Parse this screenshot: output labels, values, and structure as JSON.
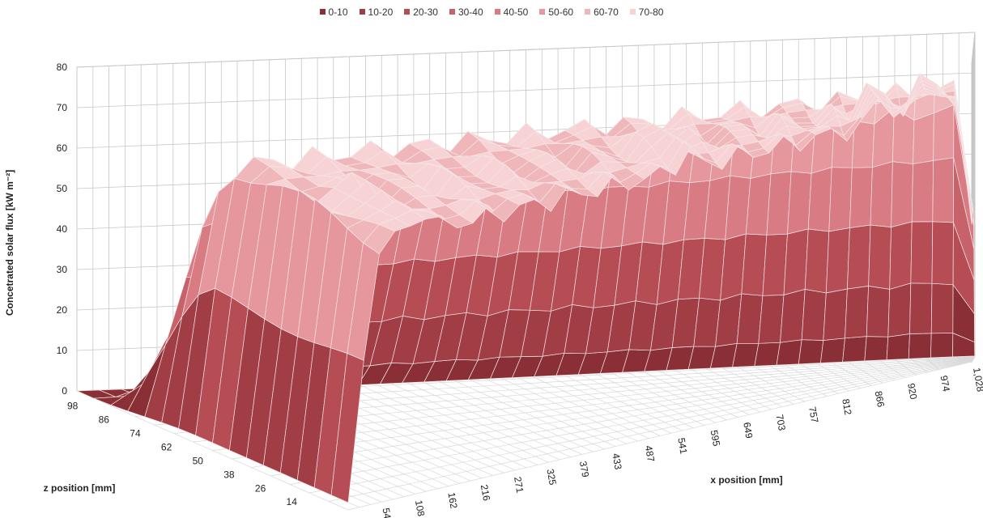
{
  "chart_data": {
    "type": "surface",
    "ylabel": "Concetrated solar flux [kW m⁻²]",
    "xlabel": "x position [mm]",
    "zlabel": "z position [mm]",
    "ylim": [
      0,
      80
    ],
    "y_ticks": [
      "0",
      "10",
      "20",
      "30",
      "40",
      "50",
      "60",
      "70",
      "80"
    ],
    "x_ticks": [
      "54",
      "108",
      "162",
      "216",
      "271",
      "325",
      "379",
      "433",
      "487",
      "541",
      "595",
      "649",
      "703",
      "757",
      "812",
      "866",
      "920",
      "974",
      "1,028"
    ],
    "z_ticks": [
      "98",
      "86",
      "74",
      "62",
      "50",
      "38",
      "26",
      "14"
    ],
    "x_range_mm": [
      0,
      1028
    ],
    "z_range_mm": [
      0,
      104
    ],
    "surface_profile": {
      "description": "flux rises sharply near both x ends and forms a plateau of about 70-75 kW m-2; along z the flux is low near z 98-104 and peaks near z 14-50",
      "plateau_value": 73,
      "x_edges_mm": [
        54,
        1000
      ],
      "peak_spikes": [
        {
          "x": 120,
          "y": 76
        },
        {
          "x": 560,
          "y": 77
        },
        {
          "x": 880,
          "y": 79
        },
        {
          "x": 960,
          "y": 80
        }
      ]
    },
    "legend": {
      "position": "top",
      "items": [
        {
          "label": "0-10",
          "color": "#8a2f35"
        },
        {
          "label": "10-20",
          "color": "#a03d45"
        },
        {
          "label": "20-30",
          "color": "#b64c54"
        },
        {
          "label": "30-40",
          "color": "#c8626a"
        },
        {
          "label": "40-50",
          "color": "#d87b82"
        },
        {
          "label": "50-60",
          "color": "#e6979d"
        },
        {
          "label": "60-70",
          "color": "#f0b7bb"
        },
        {
          "label": "70-80",
          "color": "#f7d3d5"
        }
      ]
    },
    "grid": true
  }
}
